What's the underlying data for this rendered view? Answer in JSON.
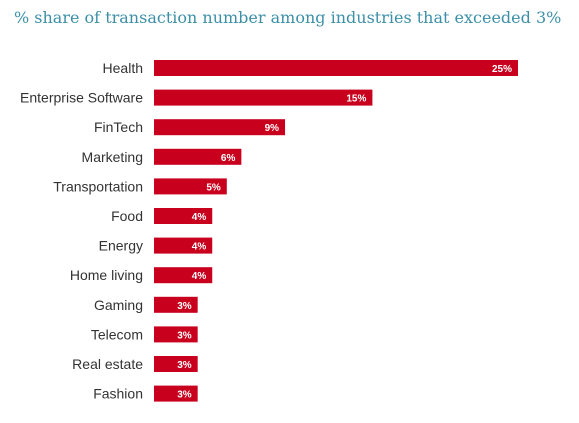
{
  "chart_data": {
    "type": "bar",
    "orientation": "horizontal",
    "title": "% share of transaction number among industries that exceeded 3%",
    "categories": [
      "Health",
      "Enterprise Software",
      "FinTech",
      "Marketing",
      "Transportation",
      "Food",
      "Energy",
      "Home living",
      "Gaming",
      "Telecom",
      "Real estate",
      "Fashion"
    ],
    "values": [
      25,
      15,
      9,
      6,
      5,
      4,
      4,
      4,
      3,
      3,
      3,
      3
    ],
    "value_labels": [
      "25%",
      "15%",
      "9%",
      "6%",
      "5%",
      "4%",
      "4%",
      "4%",
      "3%",
      "3%",
      "3%",
      "3%"
    ],
    "xlabel": "",
    "ylabel": "",
    "grid": false,
    "legend": "none",
    "bar_color": "#c8001e",
    "title_color": "#3d8fa8"
  }
}
